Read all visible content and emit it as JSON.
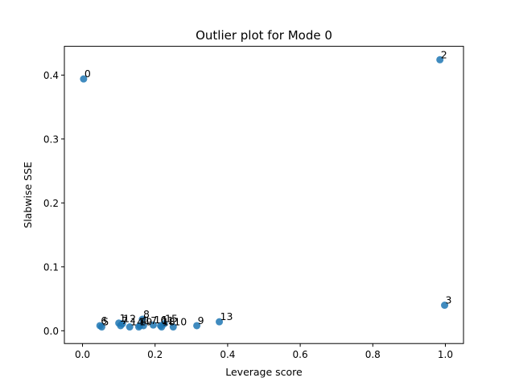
{
  "chart_data": {
    "type": "scatter",
    "title": "Outlier plot for Mode 0",
    "xlabel": "Leverage score",
    "ylabel": "Slabwise SSE",
    "xlim": [
      -0.05,
      1.05
    ],
    "ylim": [
      -0.02,
      0.445
    ],
    "xticks": [
      0.0,
      0.2,
      0.4,
      0.6,
      0.8,
      1.0
    ],
    "xtick_labels": [
      "0.0",
      "0.2",
      "0.4",
      "0.6",
      "0.8",
      "1.0"
    ],
    "yticks": [
      0.0,
      0.1,
      0.2,
      0.3,
      0.4
    ],
    "ytick_labels": [
      "0.0",
      "0.1",
      "0.2",
      "0.3",
      "0.4"
    ],
    "grid": false,
    "legend": "none",
    "marker_color": "#1f77b4",
    "points": [
      {
        "label": "0",
        "x": 0.003,
        "y": 0.394
      },
      {
        "label": "1",
        "x": 0.1,
        "y": 0.012
      },
      {
        "label": "2",
        "x": 0.985,
        "y": 0.424
      },
      {
        "label": "3",
        "x": 0.998,
        "y": 0.04
      },
      {
        "label": "4",
        "x": 0.158,
        "y": 0.008
      },
      {
        "label": "5",
        "x": 0.053,
        "y": 0.006
      },
      {
        "label": "6",
        "x": 0.048,
        "y": 0.008
      },
      {
        "label": "7",
        "x": 0.105,
        "y": 0.008
      },
      {
        "label": "8",
        "x": 0.165,
        "y": 0.018
      },
      {
        "label": "9",
        "x": 0.315,
        "y": 0.008
      },
      {
        "label": "10",
        "x": 0.25,
        "y": 0.006
      },
      {
        "label": "11",
        "x": 0.215,
        "y": 0.008
      },
      {
        "label": "12",
        "x": 0.11,
        "y": 0.011
      },
      {
        "label": "13",
        "x": 0.377,
        "y": 0.014
      },
      {
        "label": "14",
        "x": 0.13,
        "y": 0.006
      },
      {
        "label": "15",
        "x": 0.225,
        "y": 0.011
      },
      {
        "label": "16",
        "x": 0.195,
        "y": 0.009
      },
      {
        "label": "17",
        "x": 0.168,
        "y": 0.008
      },
      {
        "label": "18",
        "x": 0.218,
        "y": 0.006
      },
      {
        "label": "19",
        "x": 0.155,
        "y": 0.006
      }
    ]
  }
}
